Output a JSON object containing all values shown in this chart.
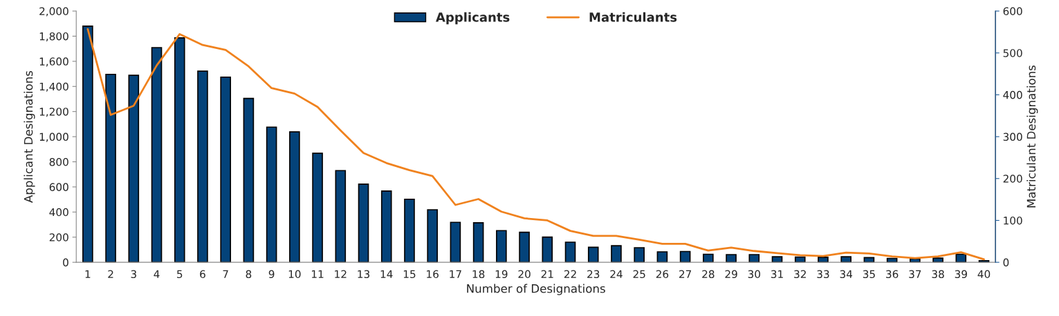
{
  "chart_data": {
    "type": "bar",
    "xlabel": "Number of Designations",
    "ylabel": "Applicant Designations",
    "y2label": "Matriculant Designations",
    "categories": [
      "1",
      "2",
      "3",
      "4",
      "5",
      "6",
      "7",
      "8",
      "9",
      "10",
      "11",
      "12",
      "13",
      "14",
      "15",
      "16",
      "17",
      "18",
      "19",
      "20",
      "21",
      "22",
      "23",
      "24",
      "25",
      "26",
      "27",
      "28",
      "29",
      "30",
      "31",
      "32",
      "33",
      "34",
      "35",
      "36",
      "37",
      "38",
      "39",
      "40"
    ],
    "series": [
      {
        "name": "Applicants",
        "color": "#04437a",
        "values": [
          1880,
          1496,
          1489,
          1709,
          1787,
          1522,
          1474,
          1305,
          1076,
          1038,
          868,
          730,
          622,
          567,
          502,
          418,
          318,
          315,
          252,
          239,
          201,
          160,
          120,
          132,
          116,
          83,
          86,
          64,
          61,
          61,
          44,
          42,
          40,
          44,
          37,
          31,
          29,
          33,
          64,
          13
        ]
      },
      {
        "name": "Matriculants",
        "type": "line",
        "axis": "y2",
        "color": "#f0821e",
        "values": [
          557,
          352,
          374,
          470,
          545,
          519,
          507,
          468,
          416,
          403,
          371,
          315,
          261,
          237,
          220,
          206,
          137,
          151,
          121,
          105,
          100,
          75,
          63,
          63,
          54,
          44,
          44,
          28,
          35,
          27,
          22,
          17,
          15,
          23,
          21,
          14,
          10,
          14,
          24,
          7
        ]
      }
    ],
    "ylim": [
      0,
      2000
    ],
    "yticks": [
      {
        "value": 0,
        "label": "0"
      },
      {
        "value": 200,
        "label": "200"
      },
      {
        "value": 400,
        "label": "400"
      },
      {
        "value": 600,
        "label": "600"
      },
      {
        "value": 800,
        "label": "800"
      },
      {
        "value": 1000,
        "label": "1,000"
      },
      {
        "value": 1200,
        "label": "1,200"
      },
      {
        "value": 1400,
        "label": "1,400"
      },
      {
        "value": 1600,
        "label": "1,600"
      },
      {
        "value": 1800,
        "label": "1,800"
      },
      {
        "value": 2000,
        "label": "2,000"
      }
    ],
    "y2lim": [
      0,
      600
    ],
    "y2ticks": [
      0,
      100,
      200,
      300,
      400,
      500,
      600
    ],
    "legend": "top",
    "grid": false
  }
}
